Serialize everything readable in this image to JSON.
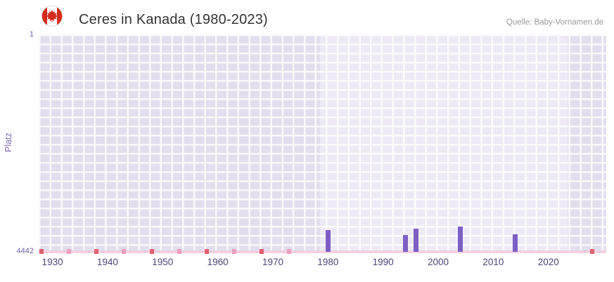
{
  "header": {
    "title": "Ceres in Kanada (1980-2023)",
    "source": "Quelle: Baby-Vornamen.de"
  },
  "chart_data": {
    "type": "bar",
    "title": "Ceres in Kanada (1980-2023)",
    "xlabel": "",
    "ylabel": "Platz",
    "y_axis": {
      "top_label": "1",
      "bottom_label": "4442",
      "min": 1,
      "max": 4442,
      "inverted": true
    },
    "x_axis": {
      "min": 1927.5,
      "max": 2030.5,
      "ticks": [
        1930,
        1940,
        1950,
        1960,
        1970,
        1980,
        1990,
        2000,
        2010,
        2020
      ]
    },
    "highlight_range": {
      "start": 1978.5,
      "end": 2023.5
    },
    "series": [
      {
        "name": "Platz",
        "points": [
          {
            "year": 1980,
            "rank": 4000
          },
          {
            "year": 1994,
            "rank": 4100
          },
          {
            "year": 1996,
            "rank": 3970
          },
          {
            "year": 2004,
            "rank": 3930
          },
          {
            "year": 2014,
            "rank": 4085
          }
        ]
      }
    ],
    "baseline_markers": {
      "strip_range": [
        1927.5,
        2030.5
      ],
      "medium_years": [
        1933,
        1943,
        1953,
        1963,
        1973
      ],
      "strong_years": [
        1928,
        1938,
        1948,
        1958,
        1968,
        2028
      ]
    },
    "colors": {
      "bar": "#7d5fc4",
      "strip": "#f4cfdf",
      "medium": "#ec9fbe",
      "strong": "#e0616e",
      "plot_bg": "#e2deee",
      "highlight_bg": "#edeaf6",
      "grid": "#ffffff",
      "axis_text": "#6e62a8",
      "tick_text": "#4f4477"
    }
  }
}
